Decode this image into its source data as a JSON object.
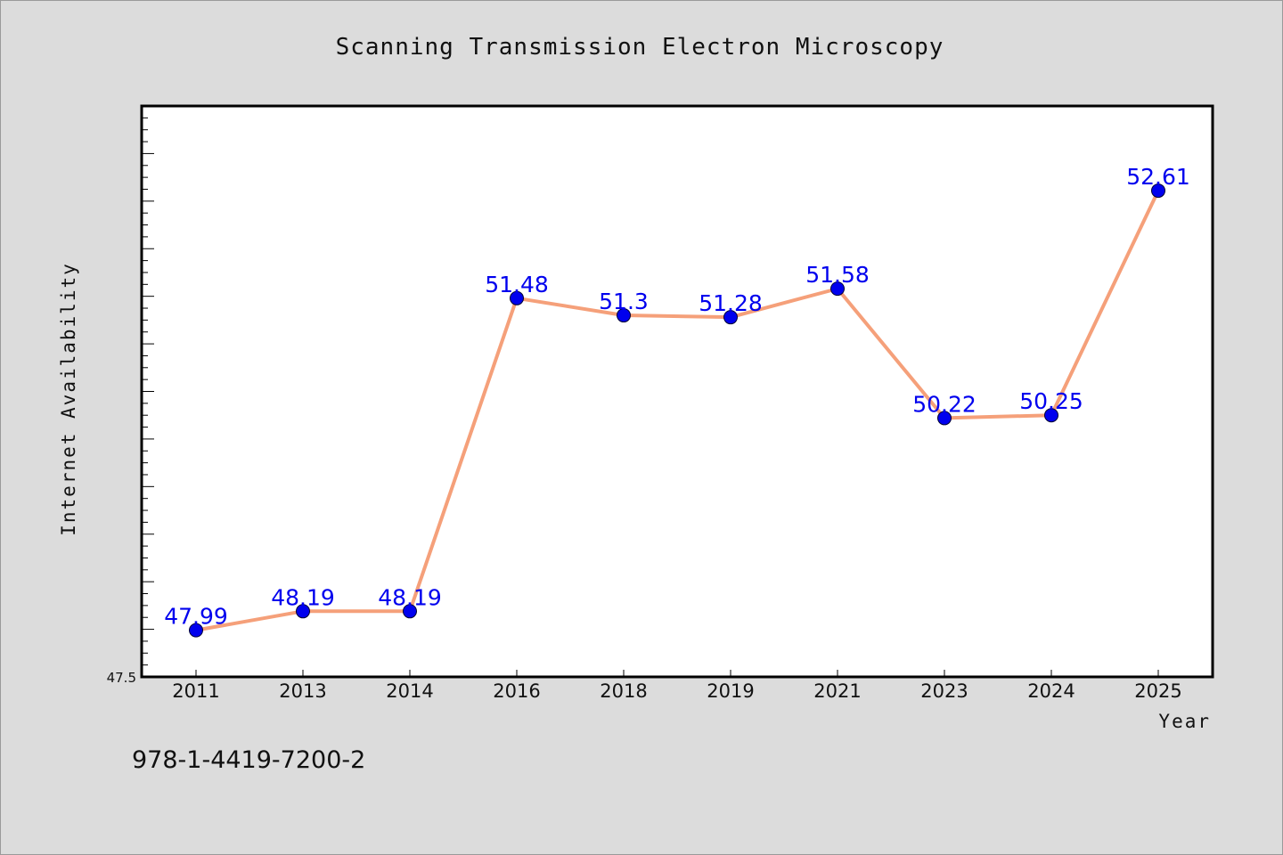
{
  "chart_data": {
    "type": "line",
    "title": "Scanning Transmission Electron Microscopy",
    "xlabel": "Year",
    "ylabel": "Internet Availability",
    "categories": [
      "2011",
      "2013",
      "2014",
      "2016",
      "2018",
      "2019",
      "2021",
      "2023",
      "2024",
      "2025"
    ],
    "series": [
      {
        "values": [
          47.99,
          48.19,
          48.19,
          51.48,
          51.3,
          51.28,
          51.58,
          50.22,
          50.25,
          52.61
        ],
        "labels": [
          "47.99",
          "48.19",
          "48.19",
          "51.48",
          "51.3",
          "51.28",
          "51.58",
          "50.22",
          "50.25",
          "52.61"
        ],
        "line_color": "#f5a07a",
        "marker_color": "#0000ee"
      }
    ],
    "ylim": [
      47.5,
      53.5
    ],
    "y_tick_label": "47.5",
    "grid": false,
    "legend": "none"
  },
  "footer_text": "978-1-4419-7200-2",
  "colors": {
    "background": "#dcdcdc",
    "plot_background": "#ffffff",
    "line": "#f5a07a",
    "marker": "#0000ee",
    "label": "#0000ee"
  }
}
